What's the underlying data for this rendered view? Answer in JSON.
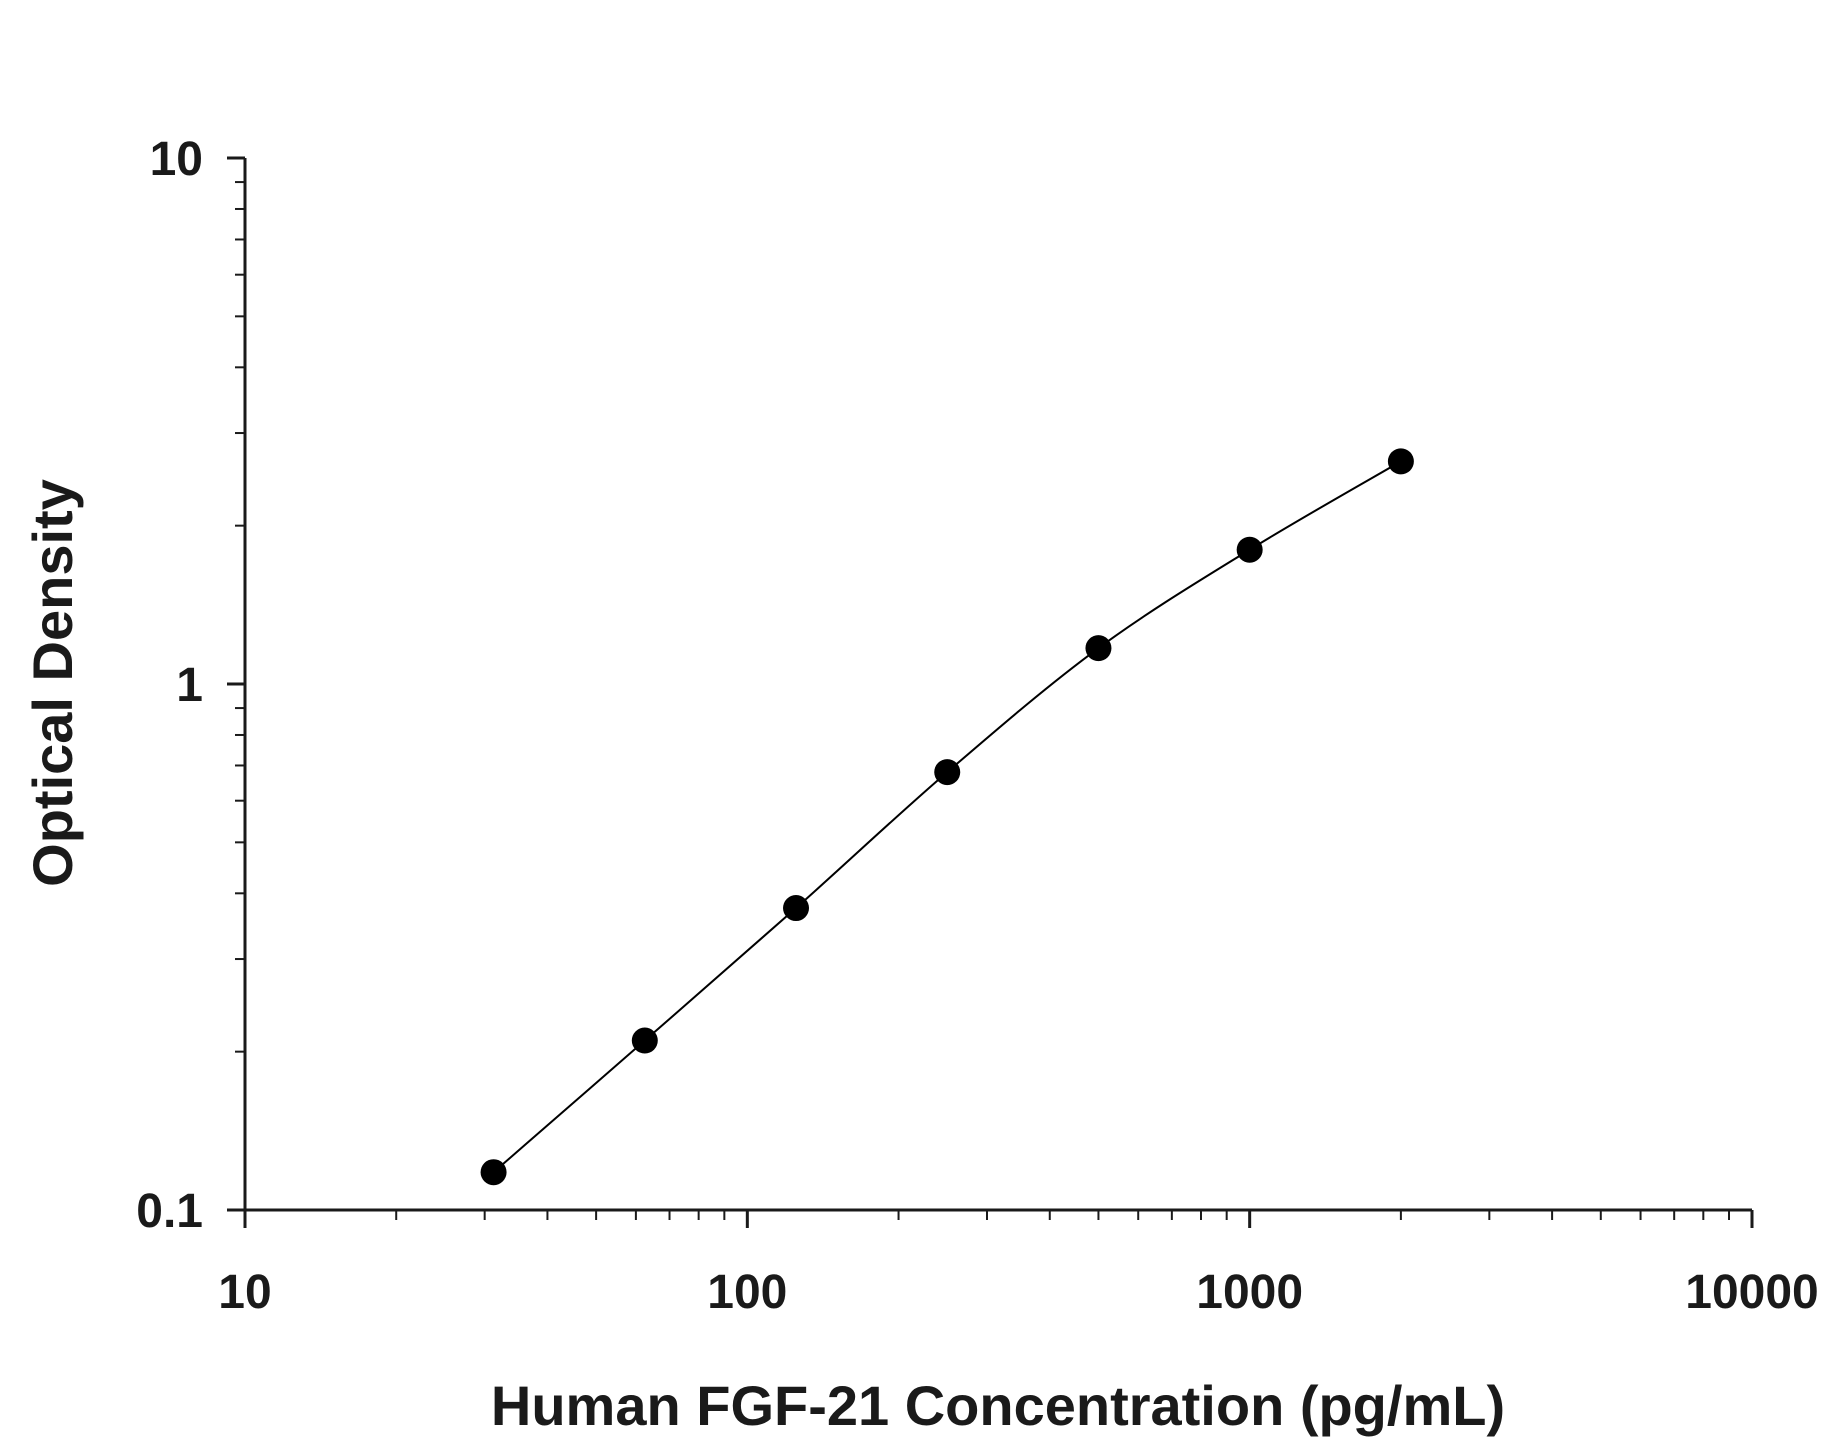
{
  "chart_data": {
    "type": "scatter",
    "title": "",
    "xlabel": "Human FGF-21 Concentration (pg/mL)",
    "ylabel": "Optical Density",
    "x_scale": "log",
    "y_scale": "log",
    "xlim": [
      10,
      10000
    ],
    "ylim": [
      0.1,
      10
    ],
    "x_tick_labels": [
      "10",
      "100",
      "1000",
      "10000"
    ],
    "x_tick_values": [
      10,
      100,
      1000,
      10000
    ],
    "y_tick_labels": [
      "0.1",
      "1",
      "10"
    ],
    "y_tick_values": [
      0.1,
      1,
      10
    ],
    "grid": false,
    "legend": "none",
    "fit_curve": true,
    "series": [
      {
        "x": [
          31.25,
          62.5,
          125,
          250,
          500,
          1000,
          2000
        ],
        "y": [
          0.118,
          0.21,
          0.375,
          0.68,
          1.17,
          1.8,
          2.65
        ]
      }
    ],
    "colors": {
      "marker": "#000000",
      "line": "#000000",
      "axis": "#1a1a1a"
    }
  }
}
